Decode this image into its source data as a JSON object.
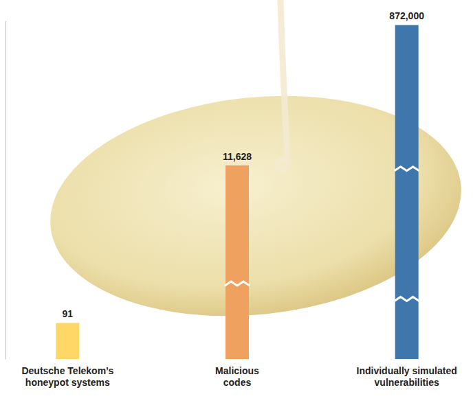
{
  "chart_data": {
    "type": "bar",
    "categories": [
      "Deutsche Telekom’s honeypot systems",
      "Malicious codes",
      "Individually simulated vulnerabilities"
    ],
    "values": [
      91,
      11628,
      872000
    ],
    "value_labels": [
      "91",
      "11,628",
      "872,000"
    ],
    "colors": [
      "#ffd766",
      "#efa25f",
      "#3f76ac"
    ],
    "log": true,
    "ylim": [
      30,
      1000000
    ],
    "data_labels": true,
    "tick_labels": "x"
  }
}
